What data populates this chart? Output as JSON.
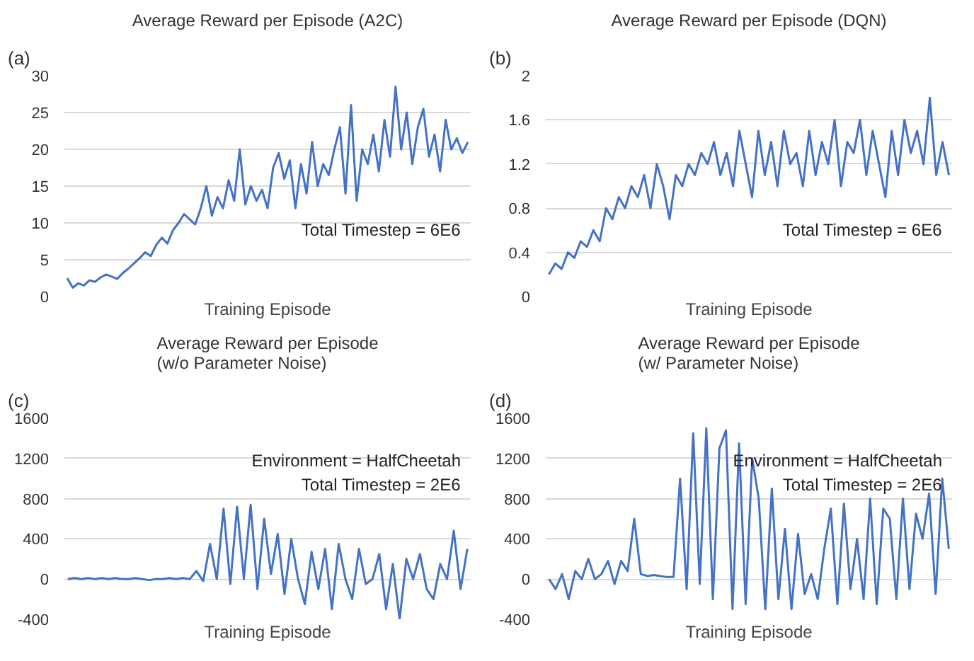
{
  "chart_data": [
    {
      "type": "line",
      "title": "Average Reward per Episode (A2C)",
      "xlabel": "Training Episode",
      "annotations": [
        "(a)",
        "Total Timestep = 6E6"
      ],
      "tick_labels": "y",
      "grid": "y",
      "ylim": [
        0,
        30
      ],
      "yticks": [
        0,
        5,
        10,
        15,
        20,
        25,
        30
      ],
      "categories": [
        null,
        null,
        null,
        null,
        null,
        null,
        null,
        null,
        null,
        null,
        null,
        null,
        null,
        null,
        null,
        null,
        null,
        null,
        null,
        null,
        null,
        null,
        null,
        null,
        null,
        null,
        null,
        null,
        null,
        null,
        null,
        null,
        null,
        null,
        null,
        null,
        null,
        null,
        null,
        null,
        null,
        null,
        null,
        null,
        null,
        null,
        null,
        null,
        null,
        null,
        null,
        null,
        null,
        null,
        null,
        null,
        null,
        null,
        null,
        null,
        null,
        null,
        null,
        null,
        null,
        null,
        null,
        null,
        null,
        null,
        null,
        null,
        null
      ],
      "series": [
        {
          "color": "#4472c4",
          "values": [
            2.5,
            1.2,
            1.8,
            1.5,
            2.2,
            2.0,
            2.6,
            3.0,
            2.7,
            2.4,
            3.2,
            3.8,
            4.5,
            5.2,
            6.0,
            5.5,
            7.0,
            8.0,
            7.2,
            9.0,
            10.0,
            11.2,
            10.5,
            9.8,
            12.0,
            15.0,
            11.0,
            13.5,
            12.0,
            15.8,
            13.0,
            20.0,
            12.5,
            15.0,
            13.0,
            14.5,
            12.0,
            17.5,
            19.5,
            16.0,
            18.5,
            12.0,
            18.0,
            14.0,
            21.0,
            15.0,
            18.0,
            16.5,
            20.0,
            23.0,
            14.0,
            26.0,
            13.0,
            20.0,
            18.0,
            22.0,
            17.0,
            24.0,
            19.0,
            28.5,
            20.0,
            25.0,
            18.0,
            23.0,
            25.5,
            19.0,
            22.0,
            17.0,
            24.0,
            20.0,
            21.5,
            19.5,
            21.0
          ]
        }
      ]
    },
    {
      "type": "line",
      "title": "Average Reward per Episode (DQN)",
      "xlabel": "Training Episode",
      "annotations": [
        "(b)",
        "Total Timestep = 6E6"
      ],
      "tick_labels": "y",
      "grid": "y",
      "ylim": [
        0,
        2
      ],
      "yticks": [
        0,
        0.4,
        0.8,
        1.2,
        1.6,
        2
      ],
      "categories": [
        null,
        null,
        null,
        null,
        null,
        null,
        null,
        null,
        null,
        null,
        null,
        null,
        null,
        null,
        null,
        null,
        null,
        null,
        null,
        null,
        null,
        null,
        null,
        null,
        null,
        null,
        null,
        null,
        null,
        null,
        null,
        null,
        null,
        null,
        null,
        null,
        null,
        null,
        null,
        null,
        null,
        null,
        null,
        null,
        null,
        null,
        null,
        null,
        null,
        null,
        null,
        null,
        null,
        null,
        null,
        null,
        null,
        null,
        null,
        null,
        null,
        null,
        null,
        null
      ],
      "series": [
        {
          "color": "#4472c4",
          "values": [
            0.2,
            0.3,
            0.25,
            0.4,
            0.35,
            0.5,
            0.45,
            0.6,
            0.5,
            0.8,
            0.7,
            0.9,
            0.8,
            1.0,
            0.9,
            1.1,
            0.8,
            1.2,
            1.0,
            0.7,
            1.1,
            1.0,
            1.2,
            1.1,
            1.3,
            1.2,
            1.4,
            1.1,
            1.3,
            1.0,
            1.5,
            1.2,
            0.9,
            1.5,
            1.1,
            1.4,
            1.0,
            1.5,
            1.2,
            1.3,
            1.0,
            1.5,
            1.1,
            1.4,
            1.2,
            1.6,
            1.0,
            1.4,
            1.3,
            1.6,
            1.1,
            1.5,
            1.2,
            0.9,
            1.5,
            1.1,
            1.6,
            1.3,
            1.5,
            1.2,
            1.8,
            1.1,
            1.4,
            1.1
          ]
        }
      ]
    },
    {
      "type": "line",
      "title": "Average Reward per Episode\n(w/o Parameter Noise)",
      "xlabel": "Training Episode",
      "annotations": [
        "(c)",
        "Environment = HalfCheetah",
        "Total Timestep = 2E6"
      ],
      "tick_labels": "y",
      "grid": "y",
      "ylim": [
        -400,
        1600
      ],
      "yticks": [
        -400,
        0,
        400,
        800,
        1200,
        1600
      ],
      "categories": [
        null,
        null,
        null,
        null,
        null,
        null,
        null,
        null,
        null,
        null,
        null,
        null,
        null,
        null,
        null,
        null,
        null,
        null,
        null,
        null,
        null,
        null,
        null,
        null,
        null,
        null,
        null,
        null,
        null,
        null,
        null,
        null,
        null,
        null,
        null,
        null,
        null,
        null,
        null,
        null,
        null,
        null,
        null,
        null,
        null,
        null,
        null,
        null,
        null,
        null,
        null,
        null,
        null,
        null,
        null,
        null,
        null,
        null,
        null,
        null
      ],
      "series": [
        {
          "color": "#4472c4",
          "values": [
            0,
            10,
            0,
            10,
            0,
            10,
            0,
            10,
            0,
            0,
            10,
            0,
            -10,
            0,
            0,
            10,
            0,
            10,
            0,
            80,
            -20,
            350,
            0,
            700,
            -50,
            720,
            0,
            740,
            -100,
            600,
            50,
            450,
            -150,
            400,
            0,
            -250,
            270,
            -100,
            300,
            -300,
            350,
            0,
            -200,
            300,
            -50,
            0,
            250,
            -300,
            150,
            -400,
            200,
            0,
            250,
            -100,
            -200,
            150,
            0,
            480,
            -100,
            300
          ]
        }
      ]
    },
    {
      "type": "line",
      "title": "Average Reward per Episode\n(w/ Parameter Noise)",
      "xlabel": "Training Episode",
      "annotations": [
        "(d)",
        "Environment = HalfCheetah",
        "Total Timestep = 2E6"
      ],
      "tick_labels": "y",
      "grid": "y",
      "ylim": [
        -400,
        1600
      ],
      "yticks": [
        -400,
        0,
        400,
        800,
        1200,
        1600
      ],
      "categories": [
        null,
        null,
        null,
        null,
        null,
        null,
        null,
        null,
        null,
        null,
        null,
        null,
        null,
        null,
        null,
        null,
        null,
        null,
        null,
        null,
        null,
        null,
        null,
        null,
        null,
        null,
        null,
        null,
        null,
        null,
        null,
        null,
        null,
        null,
        null,
        null,
        null,
        null,
        null,
        null,
        null,
        null,
        null,
        null,
        null,
        null,
        null,
        null,
        null,
        null,
        null,
        null,
        null,
        null,
        null,
        null,
        null,
        null,
        null,
        null,
        null,
        null
      ],
      "series": [
        {
          "color": "#4472c4",
          "values": [
            0,
            -100,
            50,
            -200,
            80,
            0,
            200,
            0,
            50,
            180,
            -50,
            180,
            80,
            600,
            50,
            30,
            40,
            30,
            20,
            20,
            1000,
            -100,
            1450,
            -50,
            1500,
            -200,
            1300,
            1480,
            -300,
            1350,
            -250,
            1200,
            800,
            -300,
            900,
            -200,
            500,
            -300,
            450,
            -150,
            50,
            -200,
            300,
            700,
            -250,
            750,
            -100,
            400,
            -200,
            800,
            -250,
            700,
            600,
            -200,
            800,
            -100,
            650,
            400,
            850,
            -150,
            1000,
            300
          ]
        }
      ]
    }
  ]
}
